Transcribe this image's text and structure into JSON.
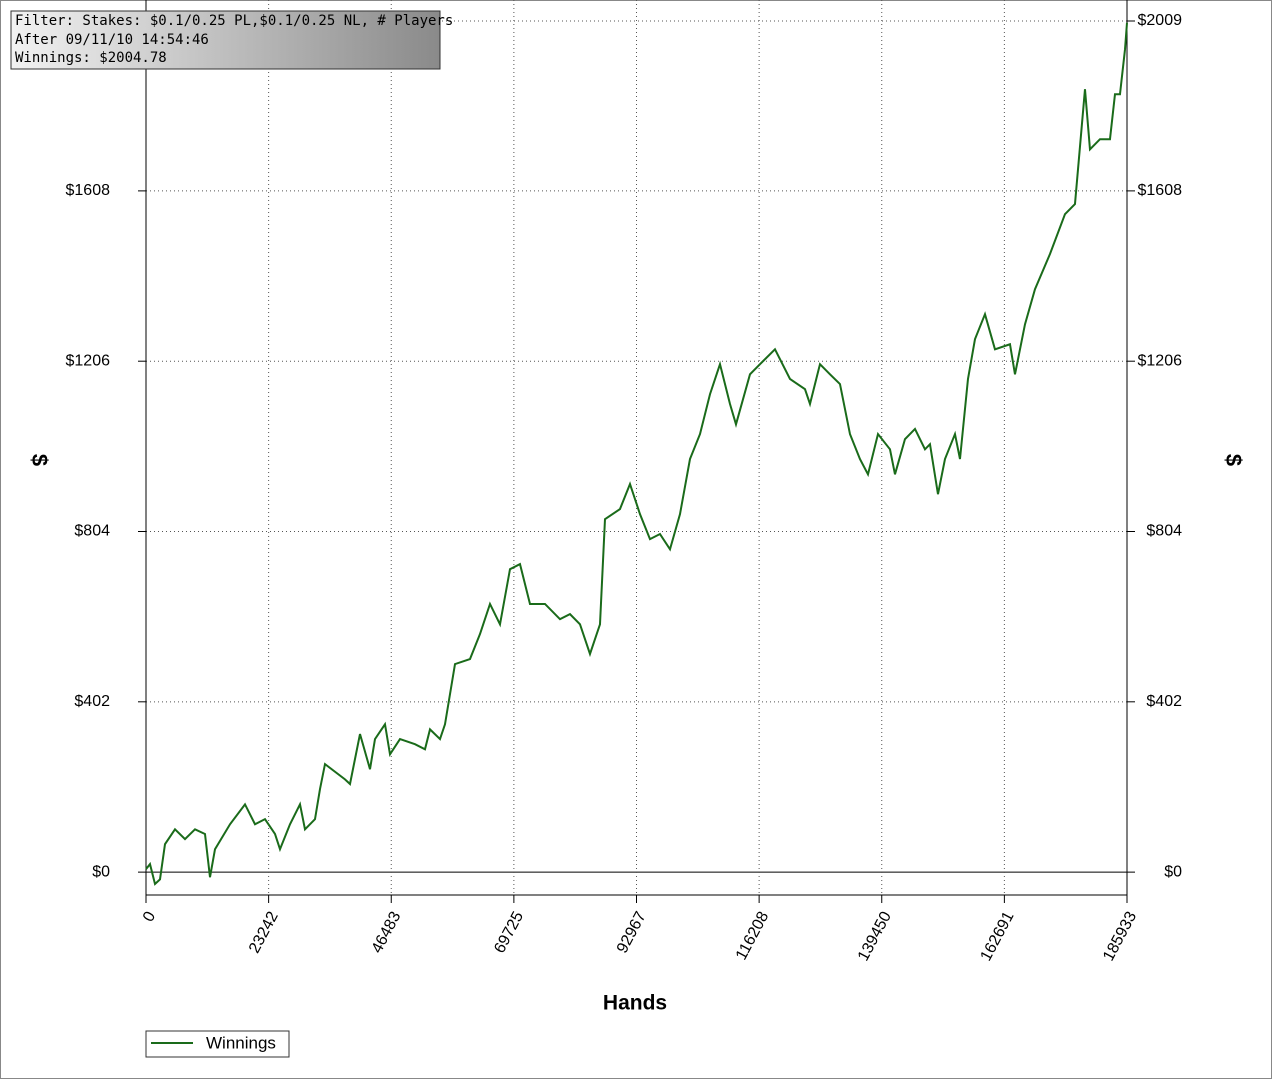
{
  "chart_data": {
    "type": "line",
    "info": [
      "Filter: Stakes: $0.1/0.25 PL,$0.1/0.25 NL, # Players",
      "After 09/11/10 14:54:46",
      "Winnings: $2004.78"
    ],
    "xlabel": "Hands",
    "ylabel": "$",
    "xlim": [
      0,
      185933
    ],
    "xticks": [
      0,
      23242,
      46483,
      69725,
      92967,
      116208,
      139450,
      162691,
      185933
    ],
    "ylim": [
      -54,
      2009
    ],
    "yticks": [
      {
        "value": 0,
        "label": "$0"
      },
      {
        "value": 402,
        "label": "$402"
      },
      {
        "value": 804,
        "label": "$804"
      },
      {
        "value": 1206,
        "label": "$1206"
      },
      {
        "value": 1608,
        "label": "$1608"
      },
      {
        "value": 2009,
        "label": "$2009"
      }
    ],
    "grid": true,
    "legend": "bottom-left",
    "series": [
      {
        "name": "Winnings",
        "color": "#1a6b1a",
        "x": [
          0,
          758,
          1706,
          2653,
          3601,
          5496,
          7392,
          9287,
          11182,
          12130,
          13078,
          15921,
          18763,
          20659,
          22554,
          24449,
          25397,
          27292,
          29188,
          30135,
          32031,
          32978,
          33926,
          37716,
          38664,
          40559,
          42455,
          43402,
          45298,
          46245,
          48141,
          50984,
          52879,
          53827,
          55722,
          56669,
          58565,
          61408,
          63303,
          65198,
          67094,
          68989,
          70884,
          72780,
          75622,
          78465,
          80361,
          82256,
          84151,
          86047,
          86994,
          89837,
          91733,
          93628,
          95523,
          97418,
          99314,
          101209,
          103104,
          105000,
          106895,
          108790,
          110686,
          111823,
          114476,
          116371,
          119214,
          122057,
          124900,
          125848,
          127743,
          129639,
          131534,
          133429,
          135324,
          136841,
          138736,
          141010,
          141958,
          143853,
          145749,
          147644,
          148592,
          150108,
          151435,
          153330,
          154278,
          155794,
          157121,
          159016,
          160911,
          163754,
          164702,
          166597,
          168492,
          171335,
          174178,
          176073,
          177969,
          178916,
          180812,
          182707,
          183655,
          184602,
          185554,
          185933
        ],
        "values": [
          7,
          19,
          -28,
          -17,
          66,
          101,
          78,
          101,
          90,
          -12,
          54,
          113,
          160,
          113,
          125,
          90,
          54,
          113,
          160,
          101,
          125,
          196,
          255,
          219,
          208,
          326,
          243,
          314,
          349,
          278,
          314,
          302,
          290,
          337,
          314,
          349,
          491,
          503,
          562,
          633,
          585,
          715,
          727,
          633,
          633,
          597,
          609,
          585,
          515,
          585,
          833,
          857,
          916,
          845,
          786,
          798,
          762,
          845,
          975,
          1034,
          1128,
          1199,
          1105,
          1057,
          1175,
          1199,
          1234,
          1164,
          1140,
          1105,
          1199,
          1175,
          1152,
          1034,
          975,
          939,
          1034,
          998,
          939,
          1022,
          1046,
          998,
          1010,
          892,
          975,
          1034,
          975,
          1164,
          1258,
          1317,
          1234,
          1246,
          1175,
          1293,
          1376,
          1459,
          1553,
          1577,
          1848,
          1706,
          1730,
          1730,
          1836,
          1836,
          1942,
          2005
        ]
      }
    ]
  }
}
